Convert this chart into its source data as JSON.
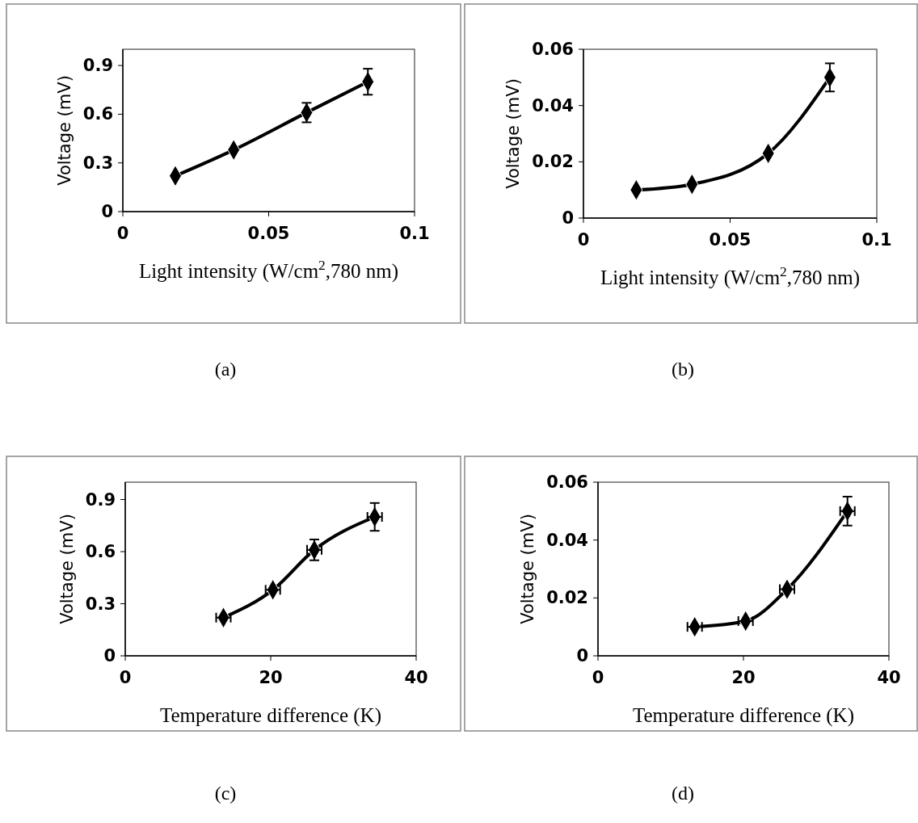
{
  "chart_data": [
    {
      "type": "line",
      "xlabel": "Light intensity (W/cm$^{2}$,780 nm)",
      "ylabel": "Voltage (mV)",
      "annotations": [
        "(a)"
      ],
      "marker": "diamond",
      "xlim": [
        0,
        0.1
      ],
      "xticks": [
        0,
        0.05,
        0.1
      ],
      "ylim": [
        0,
        1.0
      ],
      "yticks": [
        0,
        0.3,
        0.6,
        0.9
      ],
      "series": [
        {
          "color": "#000000",
          "x": [
            0.018,
            0.038,
            0.063,
            0.084
          ],
          "values": [
            0.22,
            0.38,
            0.61,
            0.8
          ],
          "errors": [
            null,
            null,
            0.06,
            0.08
          ]
        }
      ]
    },
    {
      "type": "line",
      "xlabel": "Light intensity (W/cm$^{2}$,780 nm)",
      "ylabel": "Voltage (mV)",
      "annotations": [
        "(b)"
      ],
      "marker": "diamond",
      "xlim": [
        0,
        0.1
      ],
      "xticks": [
        0,
        0.05,
        0.1
      ],
      "ylim": [
        0,
        0.06
      ],
      "yticks": [
        0,
        0.02,
        0.04,
        0.06
      ],
      "series": [
        {
          "color": "#000000",
          "x": [
            0.018,
            0.037,
            0.063,
            0.084
          ],
          "values": [
            0.01,
            0.012,
            0.023,
            0.05
          ],
          "errors": [
            null,
            null,
            null,
            0.005
          ]
        }
      ]
    },
    {
      "type": "line",
      "xlabel": "Temperature difference (K)",
      "ylabel": "Voltage (mV)",
      "annotations": [
        "(c)"
      ],
      "marker": "diamond",
      "xlim": [
        0,
        40
      ],
      "xticks": [
        0,
        20,
        40
      ],
      "ylim": [
        0,
        1.0
      ],
      "yticks": [
        0,
        0.3,
        0.6,
        0.9
      ],
      "series": [
        {
          "color": "#000000",
          "x": [
            13.5,
            20.3,
            26,
            34.3
          ],
          "values": [
            0.22,
            0.38,
            0.61,
            0.8
          ],
          "errors": [
            null,
            null,
            0.06,
            0.08
          ],
          "xerrors": [
            1,
            1,
            1,
            1
          ]
        }
      ]
    },
    {
      "type": "line",
      "xlabel": "Temperature difference (K)",
      "ylabel": "Voltage (mV)",
      "annotations": [
        "(d)"
      ],
      "marker": "diamond",
      "xlim": [
        0,
        40
      ],
      "xticks": [
        0,
        20,
        40
      ],
      "ylim": [
        0,
        0.06
      ],
      "yticks": [
        0,
        0.02,
        0.04,
        0.06
      ],
      "series": [
        {
          "color": "#000000",
          "x": [
            13.3,
            20.3,
            26,
            34.3
          ],
          "values": [
            0.01,
            0.012,
            0.023,
            0.05
          ],
          "errors": [
            null,
            null,
            null,
            0.005
          ],
          "xerrors": [
            1,
            1,
            1,
            1
          ]
        }
      ]
    }
  ]
}
